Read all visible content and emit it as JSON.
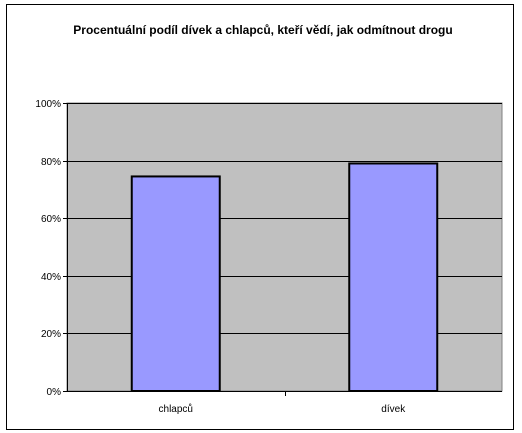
{
  "chart_data": {
    "type": "bar",
    "title": "Procentuální podíl dívek a chlapců, kteří vědí, jak odmítnout drogu",
    "categories": [
      "chlapců",
      "dívek"
    ],
    "values": [
      74.5,
      79
    ],
    "ylim": [
      0,
      100
    ],
    "yticks": [
      0,
      20,
      40,
      60,
      80,
      100
    ],
    "ytick_labels": [
      "0%",
      "20%",
      "40%",
      "60%",
      "80%",
      "100%"
    ],
    "xlabel": "",
    "ylabel": "",
    "grid": true,
    "legend": "none",
    "colors": {
      "plot_background": "#c0c0c0",
      "bar_fill": "#9999ff",
      "bar_edge": "#000000",
      "gridline": "#000000"
    }
  }
}
